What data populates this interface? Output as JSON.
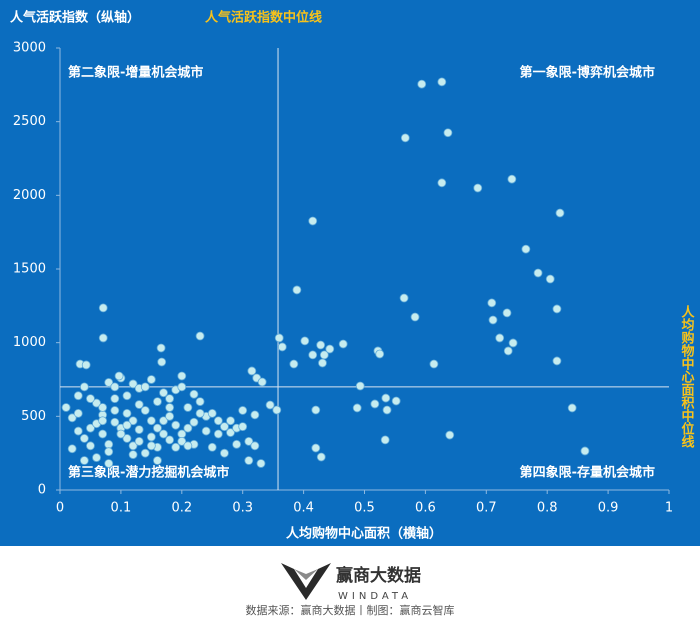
{
  "chart_data": {
    "type": "scatter",
    "title": "人气活跃指数（纵轴）",
    "x_label": "人均购物中心面积（横轴）",
    "x_median": {
      "label": "人均购物中心面积中位线",
      "value": 0.358
    },
    "y_median": {
      "label": "人气活跃指数中位线",
      "value": 700
    },
    "quadrants": [
      "第一象限-博弈机会城市",
      "第二象限-增量机会城市",
      "第三象限-潜力挖掘机会城市",
      "第四象限-存量机会城市"
    ],
    "watermark": "赢商云智库",
    "color": "#c6ecef",
    "xlim": [
      0,
      1
    ],
    "xticks": [
      0,
      0.1,
      0.2,
      0.3,
      0.4,
      0.5,
      0.6,
      0.7,
      0.8,
      0.9,
      1
    ],
    "ylim": [
      0,
      3000
    ],
    "yticks": [
      0,
      500,
      1000,
      1500,
      2000,
      2500,
      3000
    ],
    "x": [
      0.02,
      0.03,
      0.04,
      0.05,
      0.06,
      0.07,
      0.08,
      0.09,
      0.1,
      0.11,
      0.12,
      0.13,
      0.14,
      0.15,
      0.16,
      0.17,
      0.18,
      0.19,
      0.2,
      0.21,
      0.22,
      0.23,
      0.24,
      0.25,
      0.26,
      0.27,
      0.28,
      0.29,
      0.3,
      0.31,
      0.32,
      0.33,
      0.02,
      0.03,
      0.04,
      0.05,
      0.06,
      0.07,
      0.08,
      0.09,
      0.1,
      0.11,
      0.12,
      0.13,
      0.14,
      0.15,
      0.16,
      0.17,
      0.18,
      0.19,
      0.2,
      0.21,
      0.22,
      0.23,
      0.25,
      0.27,
      0.29,
      0.31,
      0.01,
      0.03,
      0.05,
      0.06,
      0.07,
      0.08,
      0.09,
      0.1,
      0.11,
      0.12,
      0.13,
      0.14,
      0.15,
      0.16,
      0.17,
      0.18,
      0.19,
      0.2,
      0.21,
      0.22,
      0.24,
      0.26,
      0.28,
      0.3,
      0.32,
      0.04,
      0.08,
      0.12,
      0.16,
      0.09,
      0.13,
      0.11,
      0.15,
      0.07,
      0.18,
      0.071,
      0.071,
      0.23,
      0.166,
      0.033,
      0.043,
      0.167,
      0.097,
      0.2,
      0.315,
      0.323,
      0.332,
      0.594,
      0.627,
      0.637,
      0.567,
      0.627,
      0.686,
      0.742,
      0.821,
      0.415,
      0.765,
      0.785,
      0.805,
      0.816,
      0.389,
      0.565,
      0.583,
      0.709,
      0.711,
      0.734,
      0.722,
      0.744,
      0.736,
      0.816,
      0.36,
      0.365,
      0.402,
      0.428,
      0.415,
      0.434,
      0.443,
      0.465,
      0.431,
      0.384,
      0.522,
      0.525,
      0.614,
      0.493,
      0.488,
      0.517,
      0.535,
      0.552,
      0.537,
      0.42,
      0.356,
      0.42,
      0.429,
      0.534,
      0.64,
      0.841,
      0.862,
      0.345
    ],
    "values": [
      490,
      640,
      700,
      420,
      590,
      510,
      730,
      700,
      760,
      640,
      720,
      690,
      700,
      750,
      600,
      660,
      620,
      680,
      700,
      560,
      650,
      600,
      500,
      520,
      470,
      430,
      390,
      420,
      430,
      330,
      300,
      180,
      280,
      400,
      350,
      300,
      450,
      380,
      310,
      460,
      420,
      350,
      300,
      410,
      250,
      360,
      420,
      470,
      340,
      290,
      380,
      420,
      310,
      520,
      290,
      250,
      310,
      200,
      560,
      520,
      620,
      220,
      560,
      260,
      540,
      380,
      520,
      470,
      330,
      540,
      470,
      290,
      380,
      500,
      440,
      330,
      300,
      460,
      400,
      380,
      470,
      540,
      510,
      200,
      180,
      240,
      200,
      620,
      580,
      440,
      300,
      470,
      560,
      1236,
      1032,
      1045,
      964,
      855,
      849,
      869,
      774,
      774,
      808,
      760,
      733,
      2755,
      2770,
      2425,
      2390,
      2085,
      2050,
      2110,
      1880,
      1826,
      1635,
      1473,
      1432,
      1229,
      1358,
      1303,
      1174,
      1270,
      1154,
      1202,
      1032,
      998,
      944,
      876,
      1032,
      971,
      1012,
      984,
      917,
      917,
      957,
      991,
      862,
      855,
      944,
      923,
      855,
      706,
      557,
      584,
      624,
      604,
      543,
      543,
      543,
      285,
      224,
      340,
      373,
      557,
      265,
      577
    ]
  },
  "footer": {
    "logo": "赢商大数据",
    "logo_en": "WINDATA",
    "source": "数据来源：赢商大数据丨制图：赢商云智库"
  }
}
